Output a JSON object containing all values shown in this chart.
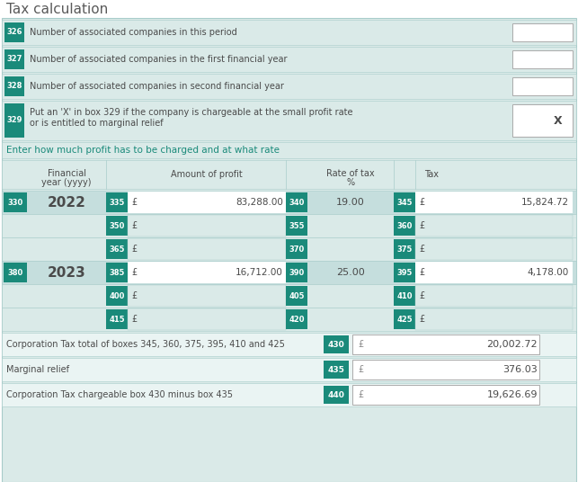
{
  "title": "Tax calculation",
  "bg_color": "#daeae8",
  "teal_color": "#1a8a7a",
  "white": "#ffffff",
  "text_dark": "#4a4a4a",
  "light_row": "#c5dedd",
  "border_color": "#a8ccca",
  "summary_bg": "#eaf4f3",
  "box_rows": [
    {
      "box": "326",
      "text": "Number of associated companies in this period",
      "two_line": false,
      "has_x": false
    },
    {
      "box": "327",
      "text": "Number of associated companies in the first financial year",
      "two_line": false,
      "has_x": false
    },
    {
      "box": "328",
      "text": "Number of associated companies in second financial year",
      "two_line": false,
      "has_x": false
    },
    {
      "box": "329",
      "text1": "Put an 'X' in box 329 if the company is chargeable at the small profit rate",
      "text2": "or is entitled to marginal relief",
      "two_line": true,
      "has_x": true
    }
  ],
  "sub_heading": "Enter how much profit has to be charged and at what rate",
  "data_rows": [
    {
      "main": true,
      "year_box": "330",
      "year": "2022",
      "amt_box": "335",
      "amt": "83,288.00",
      "rate_box": "340",
      "rate": "19.00",
      "tax_box": "345",
      "tax": "15,824.72"
    },
    {
      "main": false,
      "year_box": "",
      "year": "",
      "amt_box": "350",
      "amt": "",
      "rate_box": "355",
      "rate": "",
      "tax_box": "360",
      "tax": ""
    },
    {
      "main": false,
      "year_box": "",
      "year": "",
      "amt_box": "365",
      "amt": "",
      "rate_box": "370",
      "rate": "",
      "tax_box": "375",
      "tax": ""
    },
    {
      "main": true,
      "year_box": "380",
      "year": "2023",
      "amt_box": "385",
      "amt": "16,712.00",
      "rate_box": "390",
      "rate": "25.00",
      "tax_box": "395",
      "tax": "4,178.00"
    },
    {
      "main": false,
      "year_box": "",
      "year": "",
      "amt_box": "400",
      "amt": "",
      "rate_box": "405",
      "rate": "",
      "tax_box": "410",
      "tax": ""
    },
    {
      "main": false,
      "year_box": "",
      "year": "",
      "amt_box": "415",
      "amt": "",
      "rate_box": "420",
      "rate": "",
      "tax_box": "425",
      "tax": ""
    }
  ],
  "summary_rows": [
    {
      "label": "Corporation Tax total of boxes 345, 360, 375, 395, 410 and 425",
      "box": "430",
      "value": "20,002.72"
    },
    {
      "label": "Marginal relief",
      "box": "435",
      "value": "376.03"
    },
    {
      "label": "Corporation Tax chargeable box 430 minus box 435",
      "box": "440",
      "value": "19,626.69"
    }
  ]
}
